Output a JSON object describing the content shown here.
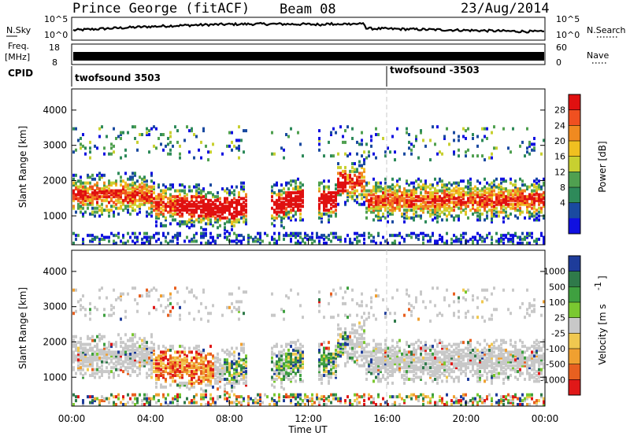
{
  "header": {
    "station": "Prince George (fitACF)",
    "beam": "Beam 08",
    "date": "23/Aug/2014"
  },
  "top_panels": {
    "nsky_label": "N.Sky",
    "nsearch_label": "N.Search",
    "nsky_ticks": [
      "10^5",
      "10^0"
    ],
    "nsearch_ticks": [
      "10^5",
      "10^0"
    ],
    "freq_label_1": "Freq.",
    "freq_label_2": "[MHz]",
    "freq_ticks": [
      "18",
      "8"
    ],
    "nave_label": "Nave",
    "nave_ticks": [
      "60",
      "0"
    ],
    "cpid_label": "CPID",
    "cpid_1": "twofsound 3503",
    "cpid_2": "twofsound -3503"
  },
  "chart_data": [
    {
      "type": "heatmap",
      "name": "power",
      "ylabel": "Slant Range [km]",
      "ylim": [
        180,
        4600
      ],
      "yticks": [
        1000,
        2000,
        3000,
        4000
      ],
      "colorbar_label": "Power [dB]",
      "colorbar_ticks": [
        "28",
        "24",
        "20",
        "16",
        "12",
        "8",
        "4"
      ],
      "colorbar_colors": [
        "#e01010",
        "#f05020",
        "#f08a20",
        "#f0c020",
        "#c8d030",
        "#50a050",
        "#2e8a5a",
        "#1a4aa0",
        "#1010e0"
      ]
    },
    {
      "type": "heatmap",
      "name": "velocity",
      "ylabel": "Slant Range [km]",
      "ylim": [
        180,
        4600
      ],
      "yticks": [
        1000,
        2000,
        3000,
        4000
      ],
      "colorbar_label": "Velocity [m s",
      "colorbar_exp": "-1",
      "colorbar_ticks": [
        "1000",
        "500",
        "100",
        "25",
        "-25",
        "-100",
        "-500",
        "-1000"
      ],
      "colorbar_colors": [
        "#1e3c9a",
        "#2f7a4a",
        "#3fa040",
        "#7ac830",
        "#c8c8c8",
        "#f0c850",
        "#f0a030",
        "#e86020",
        "#e01818"
      ]
    }
  ],
  "xaxis": {
    "label": "Time UT",
    "ticks": [
      "00:00",
      "04:00",
      "08:00",
      "12:00",
      "16:00",
      "20:00",
      "00:00"
    ]
  }
}
